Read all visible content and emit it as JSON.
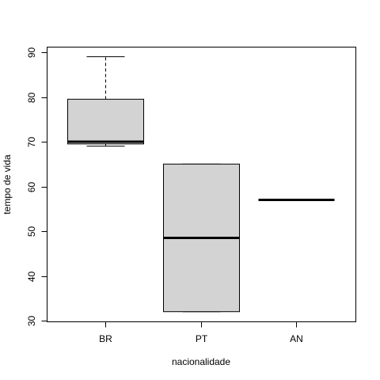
{
  "chart_data": {
    "type": "boxplot",
    "xlabel": "nacionalidade",
    "ylabel": "tempo de vida",
    "ylim": [
      30,
      90
    ],
    "yticks": [
      30,
      40,
      50,
      60,
      70,
      80,
      90
    ],
    "categories": [
      "BR",
      "PT",
      "AN"
    ],
    "box_fill": "#d3d3d3",
    "boxes": [
      {
        "category": "BR",
        "min": 69,
        "q1": 69.5,
        "median": 70,
        "q3": 79.5,
        "max": 89
      },
      {
        "category": "PT",
        "min": 32,
        "q1": 32,
        "median": 48.5,
        "q3": 65,
        "max": 65
      },
      {
        "category": "AN",
        "min": 57,
        "q1": 57,
        "median": 57,
        "q3": 57,
        "max": 57
      }
    ],
    "grid": false,
    "legend": "none"
  }
}
